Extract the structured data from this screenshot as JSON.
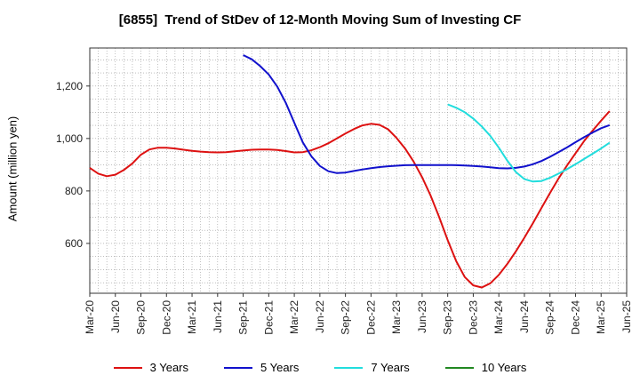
{
  "chart_data": {
    "type": "line",
    "title": "[6855]  Trend of StDev of 12-Month Moving Sum of Investing CF",
    "xlabel": "",
    "ylabel": "Amount (million yen)",
    "xlim": [
      "2020-03",
      "2025-06"
    ],
    "ylim": [
      410,
      1345
    ],
    "y_ticks": [
      600,
      800,
      1000,
      1200
    ],
    "y_tick_labels": [
      "600",
      "800",
      "1,000",
      "1,200"
    ],
    "x_ticks": [
      "2020-03",
      "2020-06",
      "2020-09",
      "2020-12",
      "2021-03",
      "2021-06",
      "2021-09",
      "2021-12",
      "2022-03",
      "2022-06",
      "2022-09",
      "2022-12",
      "2023-03",
      "2023-06",
      "2023-09",
      "2023-12",
      "2024-03",
      "2024-06",
      "2024-09",
      "2024-12",
      "2025-03",
      "2025-06"
    ],
    "x_tick_labels": [
      "Mar-20",
      "Jun-20",
      "Sep-20",
      "Dec-20",
      "Mar-21",
      "Jun-21",
      "Sep-21",
      "Dec-21",
      "Mar-22",
      "Jun-22",
      "Sep-22",
      "Dec-22",
      "Mar-23",
      "Jun-23",
      "Sep-23",
      "Dec-23",
      "Mar-24",
      "Jun-24",
      "Sep-24",
      "Dec-24",
      "Mar-25",
      "Jun-25"
    ],
    "grid": true,
    "legend_position": "bottom",
    "series": [
      {
        "name": "3 Years",
        "color": "#dd1111",
        "points": [
          [
            "2020-03",
            888
          ],
          [
            "2020-04",
            866
          ],
          [
            "2020-05",
            856
          ],
          [
            "2020-06",
            862
          ],
          [
            "2020-07",
            880
          ],
          [
            "2020-08",
            905
          ],
          [
            "2020-09",
            938
          ],
          [
            "2020-10",
            958
          ],
          [
            "2020-11",
            965
          ],
          [
            "2020-12",
            965
          ],
          [
            "2021-01",
            962
          ],
          [
            "2021-02",
            957
          ],
          [
            "2021-03",
            953
          ],
          [
            "2021-04",
            950
          ],
          [
            "2021-05",
            948
          ],
          [
            "2021-06",
            947
          ],
          [
            "2021-07",
            948
          ],
          [
            "2021-08",
            951
          ],
          [
            "2021-09",
            954
          ],
          [
            "2021-10",
            957
          ],
          [
            "2021-11",
            958
          ],
          [
            "2021-12",
            958
          ],
          [
            "2022-01",
            956
          ],
          [
            "2022-02",
            952
          ],
          [
            "2022-03",
            947
          ],
          [
            "2022-04",
            948
          ],
          [
            "2022-05",
            955
          ],
          [
            "2022-06",
            967
          ],
          [
            "2022-07",
            982
          ],
          [
            "2022-08",
            1000
          ],
          [
            "2022-09",
            1019
          ],
          [
            "2022-10",
            1036
          ],
          [
            "2022-11",
            1050
          ],
          [
            "2022-12",
            1056
          ],
          [
            "2023-01",
            1052
          ],
          [
            "2023-02",
            1035
          ],
          [
            "2023-03",
            1002
          ],
          [
            "2023-04",
            962
          ],
          [
            "2023-05",
            912
          ],
          [
            "2023-06",
            852
          ],
          [
            "2023-07",
            782
          ],
          [
            "2023-08",
            700
          ],
          [
            "2023-09",
            612
          ],
          [
            "2023-10",
            532
          ],
          [
            "2023-11",
            472
          ],
          [
            "2023-12",
            440
          ],
          [
            "2024-01",
            432
          ],
          [
            "2024-02",
            448
          ],
          [
            "2024-03",
            480
          ],
          [
            "2024-04",
            522
          ],
          [
            "2024-05",
            570
          ],
          [
            "2024-06",
            622
          ],
          [
            "2024-07",
            677
          ],
          [
            "2024-08",
            735
          ],
          [
            "2024-09",
            792
          ],
          [
            "2024-10",
            847
          ],
          [
            "2024-11",
            897
          ],
          [
            "2024-12",
            944
          ],
          [
            "2025-01",
            990
          ],
          [
            "2025-02",
            1030
          ],
          [
            "2025-03",
            1068
          ],
          [
            "2025-04",
            1104
          ]
        ]
      },
      {
        "name": "5 Years",
        "color": "#1111cc",
        "points": [
          [
            "2021-09",
            1318
          ],
          [
            "2021-10",
            1302
          ],
          [
            "2021-11",
            1276
          ],
          [
            "2021-12",
            1244
          ],
          [
            "2022-01",
            1198
          ],
          [
            "2022-02",
            1136
          ],
          [
            "2022-03",
            1060
          ],
          [
            "2022-04",
            985
          ],
          [
            "2022-05",
            932
          ],
          [
            "2022-06",
            895
          ],
          [
            "2022-07",
            875
          ],
          [
            "2022-08",
            868
          ],
          [
            "2022-09",
            870
          ],
          [
            "2022-10",
            876
          ],
          [
            "2022-11",
            882
          ],
          [
            "2022-12",
            887
          ],
          [
            "2023-01",
            891
          ],
          [
            "2023-02",
            894
          ],
          [
            "2023-03",
            896
          ],
          [
            "2023-04",
            898
          ],
          [
            "2023-05",
            899
          ],
          [
            "2023-06",
            899
          ],
          [
            "2023-07",
            899
          ],
          [
            "2023-08",
            899
          ],
          [
            "2023-09",
            899
          ],
          [
            "2023-10",
            898
          ],
          [
            "2023-11",
            897
          ],
          [
            "2023-12",
            895
          ],
          [
            "2024-01",
            893
          ],
          [
            "2024-02",
            890
          ],
          [
            "2024-03",
            887
          ],
          [
            "2024-04",
            886
          ],
          [
            "2024-05",
            888
          ],
          [
            "2024-06",
            893
          ],
          [
            "2024-07",
            902
          ],
          [
            "2024-08",
            914
          ],
          [
            "2024-09",
            930
          ],
          [
            "2024-10",
            948
          ],
          [
            "2024-11",
            966
          ],
          [
            "2024-12",
            986
          ],
          [
            "2025-01",
            1005
          ],
          [
            "2025-02",
            1023
          ],
          [
            "2025-03",
            1039
          ],
          [
            "2025-04",
            1051
          ]
        ]
      },
      {
        "name": "7 Years",
        "color": "#22dddd",
        "points": [
          [
            "2023-09",
            1130
          ],
          [
            "2023-10",
            1117
          ],
          [
            "2023-11",
            1100
          ],
          [
            "2023-12",
            1076
          ],
          [
            "2024-01",
            1046
          ],
          [
            "2024-02",
            1010
          ],
          [
            "2024-03",
            965
          ],
          [
            "2024-04",
            915
          ],
          [
            "2024-05",
            872
          ],
          [
            "2024-06",
            845
          ],
          [
            "2024-07",
            836
          ],
          [
            "2024-08",
            838
          ],
          [
            "2024-09",
            850
          ],
          [
            "2024-10",
            866
          ],
          [
            "2024-11",
            883
          ],
          [
            "2024-12",
            902
          ],
          [
            "2025-01",
            922
          ],
          [
            "2025-02",
            942
          ],
          [
            "2025-03",
            962
          ],
          [
            "2025-04",
            984
          ]
        ]
      },
      {
        "name": "10 Years",
        "color": "#228822",
        "points": []
      }
    ]
  }
}
